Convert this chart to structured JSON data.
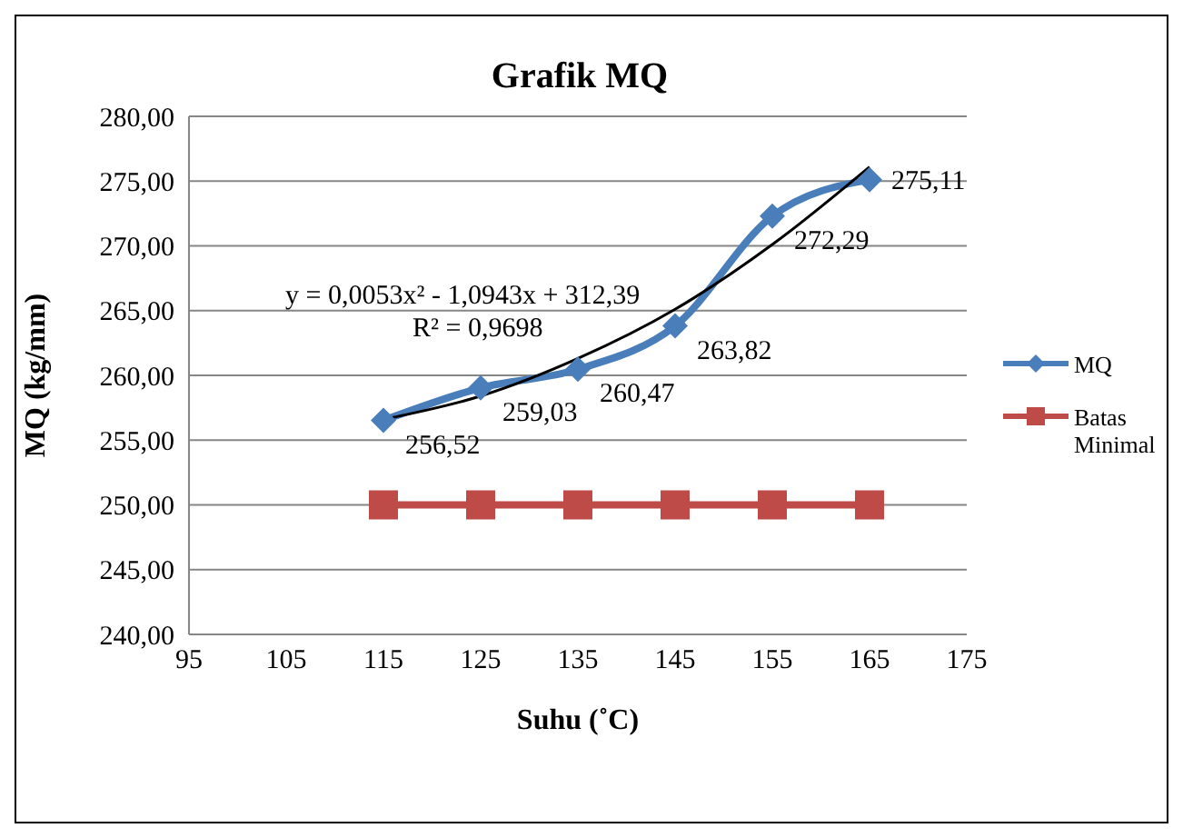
{
  "chart_data": {
    "type": "line",
    "title": "Grafik MQ",
    "xlabel": "Suhu (˚C)",
    "ylabel": "MQ (kg/mm)",
    "x": [
      115,
      125,
      135,
      145,
      155,
      165
    ],
    "series": [
      {
        "name": "MQ",
        "color": "#4a7ebb",
        "marker": "diamond",
        "values": [
          256.52,
          259.03,
          260.47,
          263.82,
          272.29,
          275.11
        ],
        "value_labels": [
          "256,52",
          "259,03",
          "260,47",
          "263,82",
          "272,29",
          "275,11"
        ]
      },
      {
        "name": "Batas Minimal",
        "color": "#be4b48",
        "marker": "square",
        "values": [
          250,
          250,
          250,
          250,
          250,
          250
        ]
      },
      {
        "type": "line",
        "color": "#000000",
        "marker": "none",
        "x": [
          115,
          125,
          135,
          145,
          155,
          165
        ],
        "values": [
          256.6,
          258.4,
          261.3,
          265.1,
          270.1,
          276.1
        ]
      }
    ],
    "annotations": [
      "y = 0,0053x² - 1,0943x + 312,39",
      "R² = 0,9698"
    ],
    "xlim": [
      95,
      175
    ],
    "xticks": [
      95,
      105,
      115,
      125,
      135,
      145,
      155,
      165,
      175
    ],
    "ylim": [
      240,
      280
    ],
    "yticks": [
      {
        "value": 240,
        "label": "240,00"
      },
      {
        "value": 245,
        "label": "245,00"
      },
      {
        "value": 250,
        "label": "250,00"
      },
      {
        "value": 255,
        "label": "255,00"
      },
      {
        "value": 260,
        "label": "260,00"
      },
      {
        "value": 265,
        "label": "265,00"
      },
      {
        "value": 270,
        "label": "270,00"
      },
      {
        "value": 275,
        "label": "275,00"
      },
      {
        "value": 280,
        "label": "280,00"
      }
    ],
    "grid": "y",
    "legend": "right"
  }
}
